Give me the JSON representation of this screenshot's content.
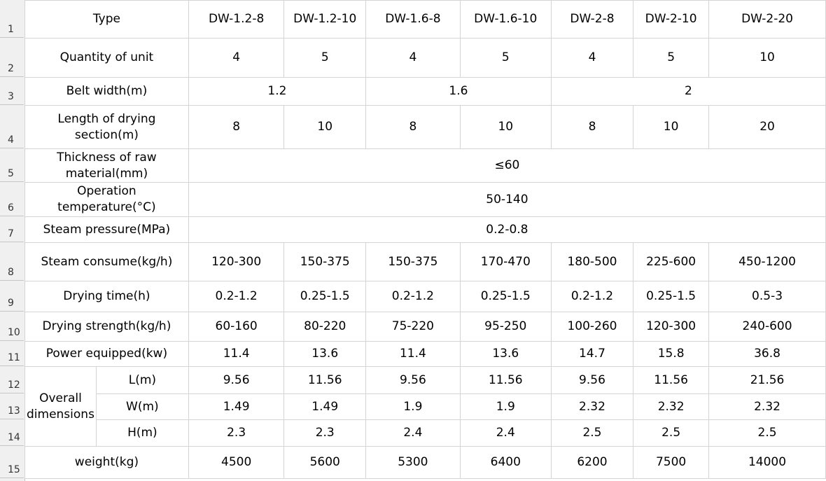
{
  "row_numbers": [
    "1",
    "2",
    "3",
    "4",
    "5",
    "6",
    "7",
    "8",
    "9",
    "10",
    "11",
    "12",
    "13",
    "14",
    "15"
  ],
  "header": {
    "label": "Type",
    "models": [
      "DW-1.2-8",
      "DW-1.2-10",
      "DW-1.6-8",
      "DW-1.6-10",
      "DW-2-8",
      "DW-2-10",
      "DW-2-20"
    ]
  },
  "quantity": {
    "label": "Quantity of unit",
    "values": [
      "4",
      "5",
      "4",
      "5",
      "4",
      "5",
      "10"
    ]
  },
  "belt_width": {
    "label": "Belt width(m)",
    "values": [
      "1.2",
      "1.6",
      "2"
    ]
  },
  "length": {
    "label": "Length of drying section(m)",
    "values": [
      "8",
      "10",
      "8",
      "10",
      "8",
      "10",
      "20"
    ]
  },
  "thickness": {
    "label": "Thickness of raw material(mm)",
    "value": "≤60"
  },
  "temperature": {
    "label": "Operation temperature(°C)",
    "value": "50-140"
  },
  "steam_pressure": {
    "label": "Steam pressure(MPa)",
    "value": "0.2-0.8"
  },
  "steam_consume": {
    "label": "Steam consume(kg/h)",
    "values": [
      "120-300",
      "150-375",
      "150-375",
      "170-470",
      "180-500",
      "225-600",
      "450-1200"
    ]
  },
  "drying_time": {
    "label": "Drying time(h)",
    "values": [
      "0.2-1.2",
      "0.25-1.5",
      "0.2-1.2",
      "0.25-1.5",
      "0.2-1.2",
      "0.25-1.5",
      "0.5-3"
    ]
  },
  "drying_strength": {
    "label": "Drying strength(kg/h)",
    "values": [
      "60-160",
      "80-220",
      "75-220",
      "95-250",
      "100-260",
      "120-300",
      "240-600"
    ]
  },
  "power": {
    "label": "Power equipped(kw)",
    "values": [
      "11.4",
      "13.6",
      "11.4",
      "13.6",
      "14.7",
      "15.8",
      "36.8"
    ]
  },
  "overall": {
    "label": "Overall dimensions",
    "L": {
      "label": "L(m)",
      "values": [
        "9.56",
        "11.56",
        "9.56",
        "11.56",
        "9.56",
        "11.56",
        "21.56"
      ]
    },
    "W": {
      "label": "W(m)",
      "values": [
        "1.49",
        "1.49",
        "1.9",
        "1.9",
        "2.32",
        "2.32",
        "2.32"
      ]
    },
    "H": {
      "label": "H(m)",
      "values": [
        "2.3",
        "2.3",
        "2.4",
        "2.4",
        "2.5",
        "2.5",
        "2.5"
      ]
    }
  },
  "weight": {
    "label": "weight(kg)",
    "values": [
      "4500",
      "5600",
      "5300",
      "6400",
      "6200",
      "7500",
      "14000"
    ]
  }
}
